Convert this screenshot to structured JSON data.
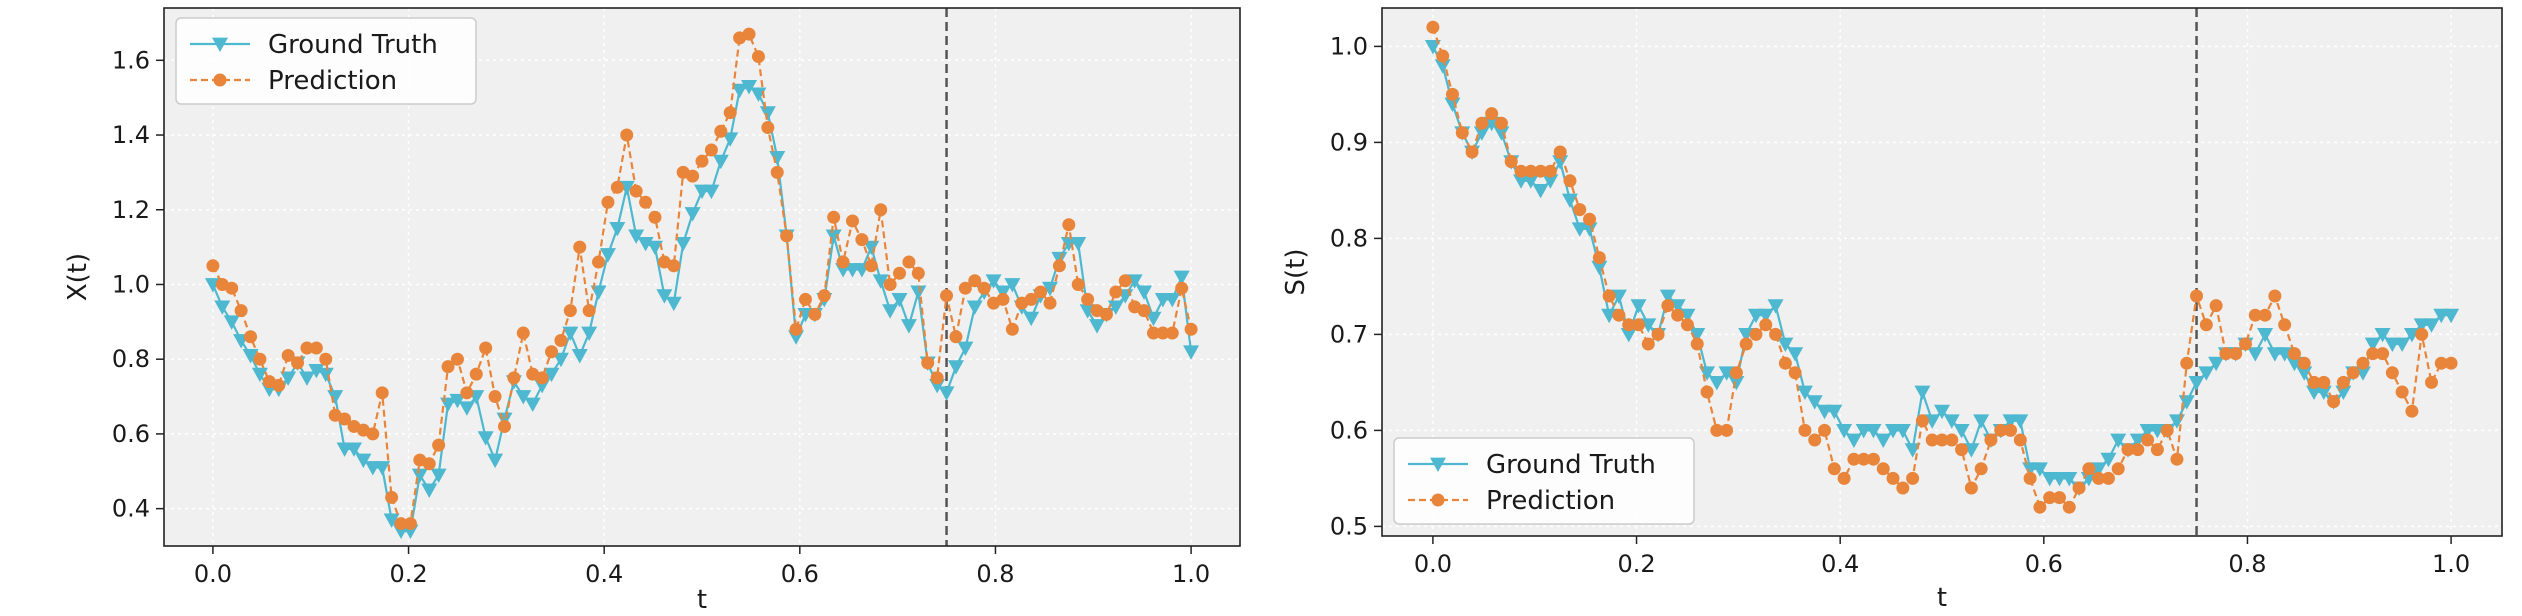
{
  "colors": {
    "ground_truth": "#4DB8CF",
    "prediction": "#E8853A",
    "plot_bg": "#F0F0F0",
    "grid": "#FFFFFF",
    "vline": "#555555"
  },
  "chart_data": [
    {
      "type": "line",
      "xlabel": "t",
      "ylabel": "X(t)",
      "xlim": [
        -0.05,
        1.05
      ],
      "ylim": [
        0.3,
        1.74
      ],
      "xticks": [
        0.0,
        0.2,
        0.4,
        0.6,
        0.8,
        1.0
      ],
      "xtick_labels": [
        "0.0",
        "0.2",
        "0.4",
        "0.6",
        "0.8",
        "1.0"
      ],
      "yticks": [
        0.4,
        0.6,
        0.8,
        1.0,
        1.2,
        1.4,
        1.6
      ],
      "ytick_labels": [
        "0.4",
        "0.6",
        "0.8",
        "1.0",
        "1.2",
        "1.4",
        "1.6"
      ],
      "vline_x": 0.75,
      "legend_position": "upper-left",
      "legend": [
        "Ground Truth",
        "Prediction"
      ],
      "series": [
        {
          "name": "Ground Truth",
          "marker": "triangle-down",
          "linestyle": "solid",
          "values": [
            1.0,
            0.94,
            0.9,
            0.85,
            0.81,
            0.76,
            0.72,
            0.72,
            0.75,
            0.79,
            0.75,
            0.77,
            0.76,
            0.7,
            0.56,
            0.56,
            0.53,
            0.51,
            0.51,
            0.37,
            0.34,
            0.34,
            0.49,
            0.45,
            0.49,
            0.68,
            0.69,
            0.67,
            0.7,
            0.59,
            0.53,
            0.64,
            0.74,
            0.7,
            0.68,
            0.73,
            0.76,
            0.8,
            0.87,
            0.81,
            0.87,
            0.98,
            1.08,
            1.15,
            1.26,
            1.13,
            1.11,
            1.1,
            0.97,
            0.95,
            1.11,
            1.19,
            1.25,
            1.25,
            1.33,
            1.39,
            1.52,
            1.53,
            1.51,
            1.46,
            1.34,
            1.13,
            0.86,
            0.92,
            0.92,
            0.96,
            1.13,
            1.04,
            1.04,
            1.04,
            1.1,
            1.01,
            0.93,
            0.96,
            0.89,
            0.98,
            0.79,
            0.73,
            0.71,
            0.78,
            0.83,
            0.94,
            0.98,
            1.01,
            0.98,
            1.0,
            0.94,
            0.91,
            0.97,
            0.99,
            1.07,
            1.11,
            1.11,
            0.93,
            0.89,
            0.92,
            0.94,
            0.97,
            1.01,
            0.98,
            0.91,
            0.96,
            0.96,
            1.02,
            0.82
          ]
        },
        {
          "name": "Prediction",
          "marker": "circle",
          "linestyle": "dashed",
          "values": [
            1.05,
            1.0,
            0.99,
            0.93,
            0.86,
            0.8,
            0.74,
            0.73,
            0.81,
            0.79,
            0.83,
            0.83,
            0.8,
            0.65,
            0.64,
            0.62,
            0.61,
            0.6,
            0.71,
            0.43,
            0.36,
            0.36,
            0.53,
            0.52,
            0.57,
            0.78,
            0.8,
            0.71,
            0.76,
            0.83,
            0.7,
            0.62,
            0.75,
            0.87,
            0.76,
            0.75,
            0.82,
            0.85,
            0.93,
            1.1,
            0.93,
            1.06,
            1.22,
            1.26,
            1.4,
            1.25,
            1.22,
            1.18,
            1.06,
            1.05,
            1.3,
            1.29,
            1.33,
            1.36,
            1.41,
            1.46,
            1.66,
            1.67,
            1.61,
            1.42,
            1.3,
            1.13,
            0.88,
            0.96,
            0.92,
            0.97,
            1.18,
            1.06,
            1.17,
            1.12,
            1.05,
            1.2,
            1.0,
            1.03,
            1.06,
            1.03,
            0.79,
            0.75,
            0.97,
            0.86,
            0.99,
            1.01,
            0.99,
            0.95,
            0.96,
            0.88,
            0.95,
            0.96,
            0.98,
            0.95,
            1.05,
            1.16,
            1.0,
            0.96,
            0.93,
            0.92,
            0.98,
            1.01,
            0.94,
            0.93,
            0.87,
            0.87,
            0.87,
            0.99,
            0.88
          ]
        }
      ]
    },
    {
      "type": "line",
      "xlabel": "t",
      "ylabel": "S(t)",
      "xlim": [
        -0.05,
        1.05
      ],
      "ylim": [
        0.49,
        1.04
      ],
      "xticks": [
        0.0,
        0.2,
        0.4,
        0.6,
        0.8,
        1.0
      ],
      "xtick_labels": [
        "0.0",
        "0.2",
        "0.4",
        "0.6",
        "0.8",
        "1.0"
      ],
      "yticks": [
        0.5,
        0.6,
        0.7,
        0.8,
        0.9,
        1.0
      ],
      "ytick_labels": [
        "0.5",
        "0.6",
        "0.7",
        "0.8",
        "0.9",
        "1.0"
      ],
      "vline_x": 0.75,
      "legend_position": "lower-left",
      "legend": [
        "Ground Truth",
        "Prediction"
      ],
      "series": [
        {
          "name": "Ground Truth",
          "marker": "triangle-down",
          "linestyle": "solid",
          "values": [
            1.0,
            0.98,
            0.94,
            0.91,
            0.89,
            0.91,
            0.92,
            0.91,
            0.88,
            0.86,
            0.86,
            0.85,
            0.86,
            0.88,
            0.84,
            0.81,
            0.81,
            0.77,
            0.72,
            0.74,
            0.7,
            0.73,
            0.71,
            0.7,
            0.74,
            0.73,
            0.72,
            0.7,
            0.66,
            0.65,
            0.66,
            0.65,
            0.7,
            0.72,
            0.72,
            0.73,
            0.69,
            0.68,
            0.64,
            0.63,
            0.62,
            0.62,
            0.6,
            0.59,
            0.6,
            0.6,
            0.59,
            0.6,
            0.6,
            0.58,
            0.64,
            0.61,
            0.62,
            0.61,
            0.6,
            0.58,
            0.61,
            0.59,
            0.6,
            0.61,
            0.61,
            0.56,
            0.56,
            0.55,
            0.55,
            0.55,
            0.54,
            0.55,
            0.56,
            0.57,
            0.59,
            0.58,
            0.59,
            0.6,
            0.6,
            0.6,
            0.61,
            0.63,
            0.65,
            0.66,
            0.67,
            0.68,
            0.68,
            0.69,
            0.68,
            0.7,
            0.68,
            0.68,
            0.67,
            0.66,
            0.64,
            0.64,
            0.63,
            0.64,
            0.66,
            0.66,
            0.69,
            0.7,
            0.69,
            0.69,
            0.7,
            0.71,
            0.71,
            0.72,
            0.72
          ]
        },
        {
          "name": "Prediction",
          "marker": "circle",
          "linestyle": "dashed",
          "values": [
            1.02,
            0.99,
            0.95,
            0.91,
            0.89,
            0.92,
            0.93,
            0.92,
            0.88,
            0.87,
            0.87,
            0.87,
            0.87,
            0.89,
            0.86,
            0.83,
            0.82,
            0.78,
            0.74,
            0.72,
            0.71,
            0.71,
            0.69,
            0.7,
            0.73,
            0.72,
            0.71,
            0.69,
            0.64,
            0.6,
            0.6,
            0.66,
            0.69,
            0.7,
            0.71,
            0.7,
            0.67,
            0.66,
            0.6,
            0.59,
            0.6,
            0.56,
            0.55,
            0.57,
            0.57,
            0.57,
            0.56,
            0.55,
            0.54,
            0.55,
            0.61,
            0.59,
            0.59,
            0.59,
            0.58,
            0.54,
            0.56,
            0.59,
            0.6,
            0.6,
            0.59,
            0.55,
            0.52,
            0.53,
            0.53,
            0.52,
            0.54,
            0.56,
            0.55,
            0.55,
            0.56,
            0.58,
            0.58,
            0.59,
            0.58,
            0.6,
            0.57,
            0.67,
            0.74,
            0.71,
            0.73,
            0.68,
            0.68,
            0.69,
            0.72,
            0.72,
            0.74,
            0.71,
            0.68,
            0.67,
            0.65,
            0.65,
            0.63,
            0.65,
            0.66,
            0.67,
            0.68,
            0.68,
            0.66,
            0.64,
            0.62,
            0.7,
            0.65,
            0.67,
            0.67
          ]
        }
      ]
    }
  ]
}
